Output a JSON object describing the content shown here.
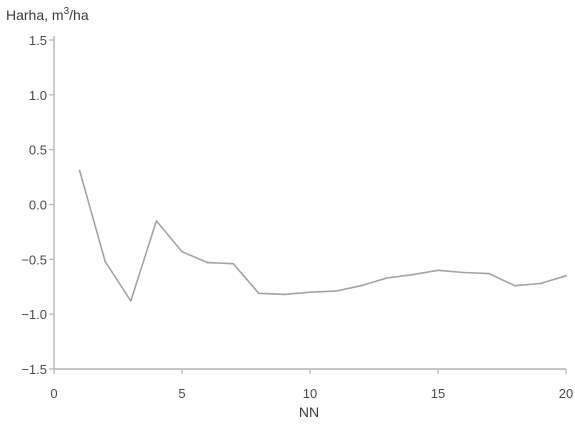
{
  "chart_data": {
    "type": "line",
    "title": "",
    "ylabel": "Harha, m",
    "ylabel_sup": "3",
    "ylabel_suffix": "/ha",
    "xlabel": "NN",
    "xlim": [
      0,
      20
    ],
    "ylim": [
      -1.5,
      1.5
    ],
    "xticks": [
      0,
      5,
      10,
      15,
      20
    ],
    "xtick_labels": [
      "0",
      "5",
      "10",
      "15",
      "20"
    ],
    "yticks": [
      -1.5,
      -1.0,
      -0.5,
      0.0,
      0.5,
      1.0,
      1.5
    ],
    "ytick_labels": [
      "−1.5",
      "−1.0",
      "−0.5",
      "0.0",
      "0.5",
      "1.0",
      "1.5"
    ],
    "grid": false,
    "line_color": "#a3a3a3",
    "series": [
      {
        "x": [
          1,
          2,
          3,
          4,
          5,
          6,
          7,
          8,
          9,
          10,
          11,
          12,
          13,
          14,
          15,
          16,
          17,
          18,
          19,
          20
        ],
        "values": [
          0.31,
          -0.52,
          -0.88,
          -0.15,
          -0.43,
          -0.53,
          -0.54,
          -0.81,
          -0.82,
          -0.8,
          -0.79,
          -0.74,
          -0.67,
          -0.64,
          -0.6,
          -0.62,
          -0.63,
          -0.74,
          -0.72,
          -0.65
        ]
      }
    ]
  }
}
